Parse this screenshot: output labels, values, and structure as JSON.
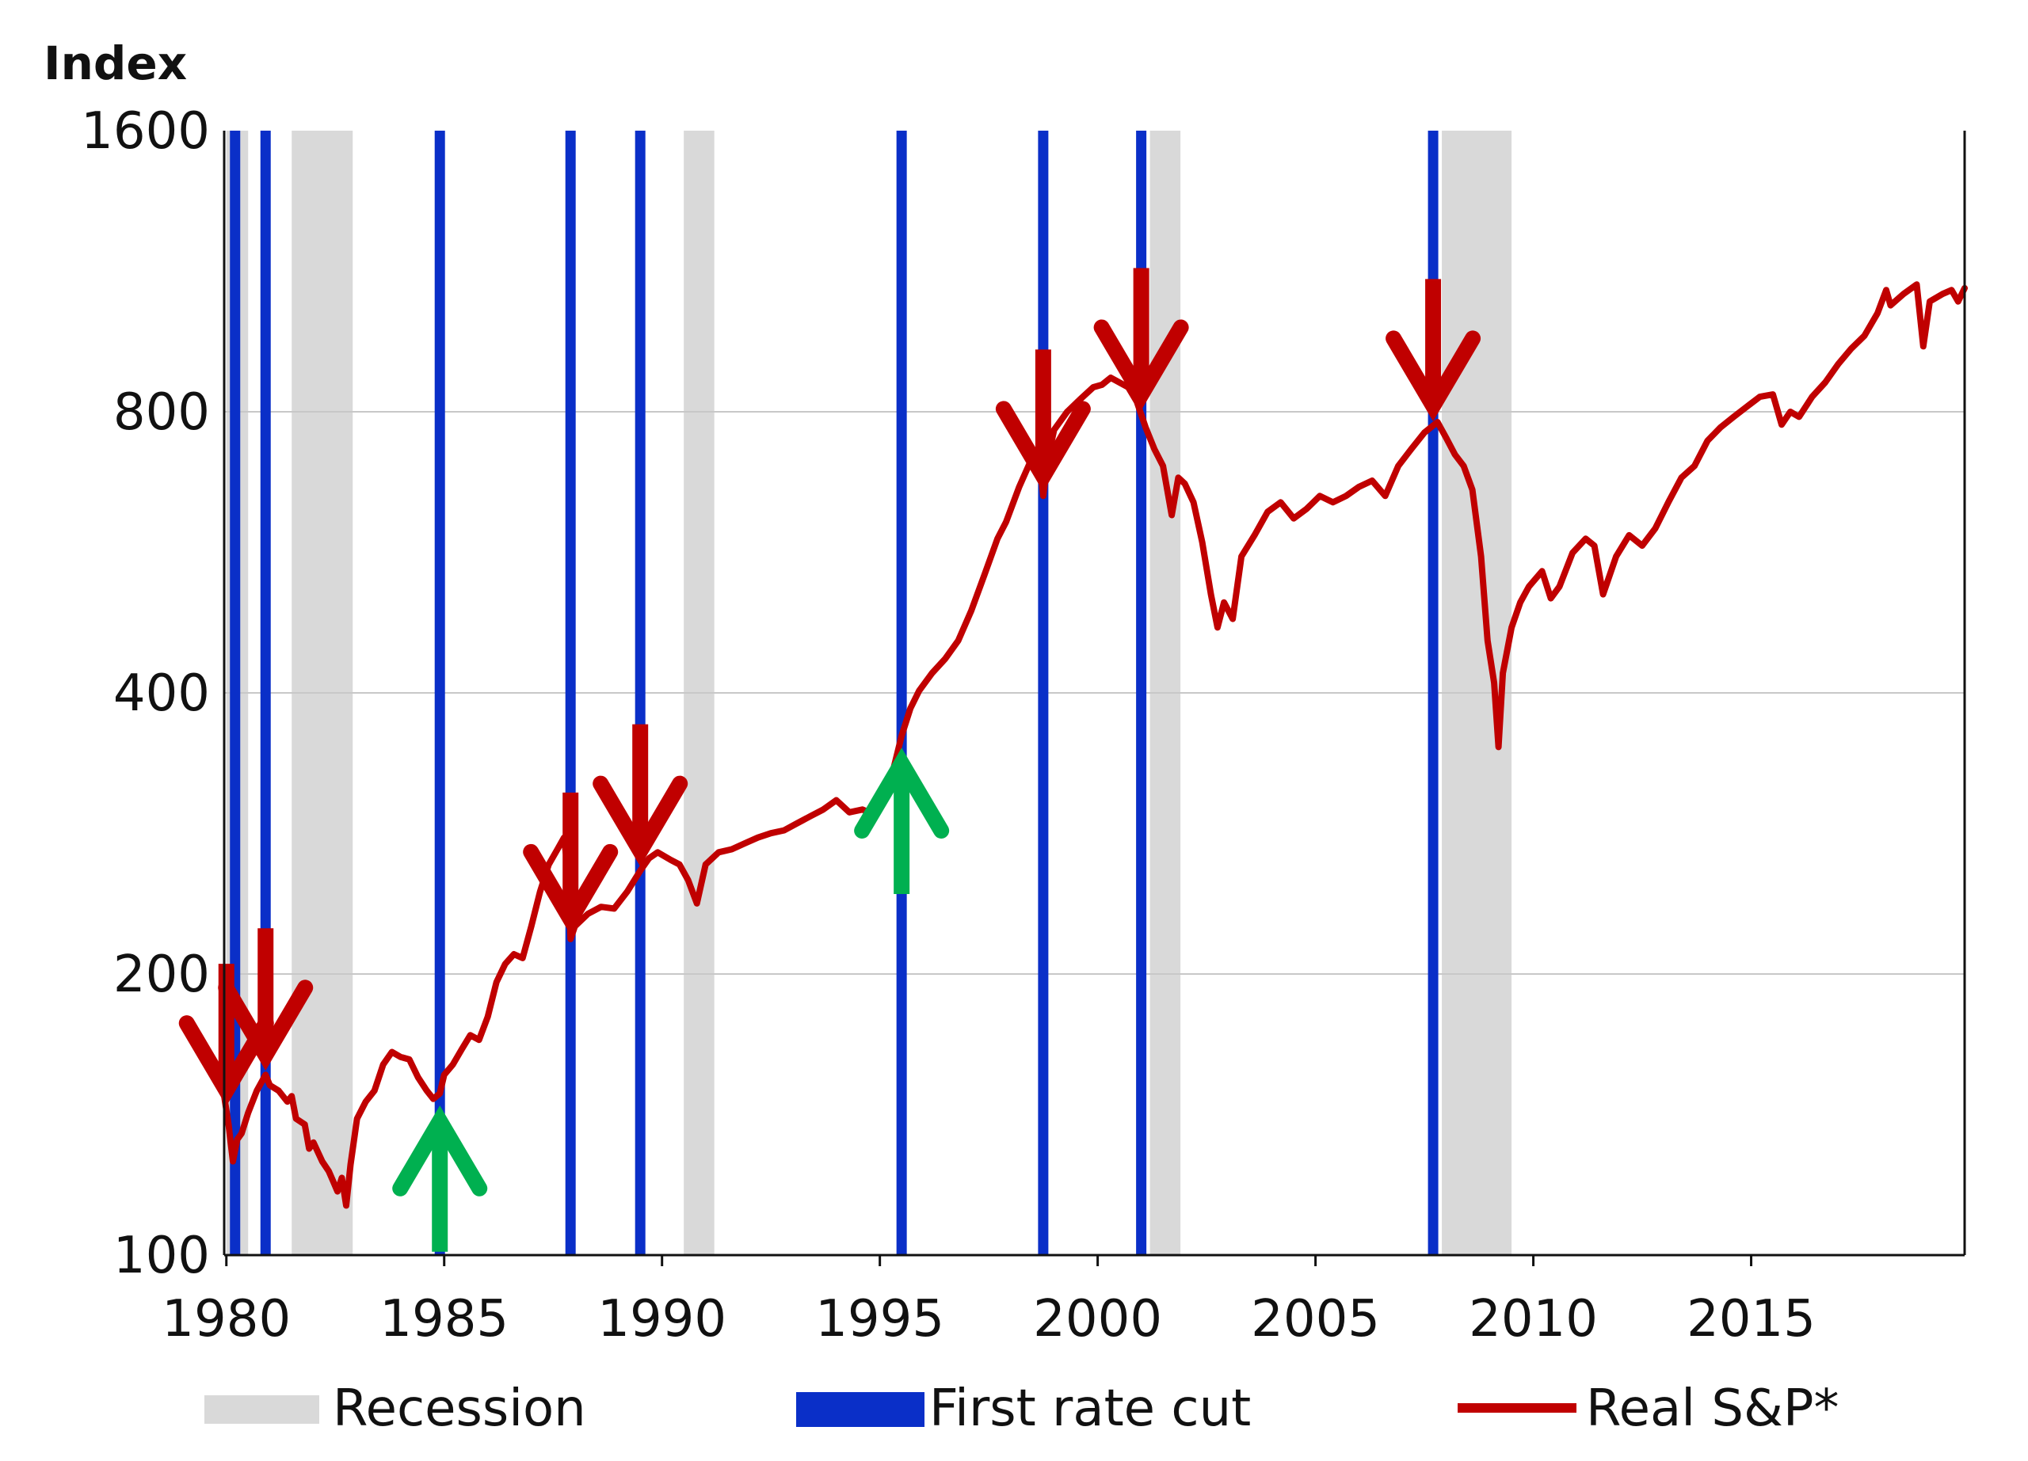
{
  "chart_data": {
    "type": "line",
    "ylabel": "Index",
    "y_scale": "log",
    "ylim": [
      100,
      1600
    ],
    "y_ticks": [
      "100",
      "200",
      "400",
      "800",
      "1600"
    ],
    "xlim": [
      1979.95,
      2019.9
    ],
    "x_ticks": [
      "1980",
      "1985",
      "1990",
      "1995",
      "2000",
      "2005",
      "2010",
      "2015"
    ],
    "grid": "horizontal",
    "legend": {
      "placement": "bottom",
      "items": [
        {
          "label": "Recession",
          "color": "#d9d9d9"
        },
        {
          "label": "First rate cut",
          "color": "#0a2fc8"
        },
        {
          "label": "Real S&P*",
          "color": "#c00000"
        }
      ]
    },
    "recessions": [
      [
        1980.0,
        1980.5
      ],
      [
        1981.5,
        1982.9
      ],
      [
        1990.5,
        1991.2
      ],
      [
        2001.2,
        2001.9
      ],
      [
        2007.9,
        2009.5
      ]
    ],
    "first_rate_cuts": [
      1980.2,
      1980.9,
      1984.9,
      1987.9,
      1989.5,
      1995.5,
      1998.75,
      2001.0,
      2007.7
    ],
    "down_arrows": [
      1980.0,
      1980.9,
      1987.9,
      1989.5,
      1998.75,
      2001.0,
      2007.7
    ],
    "up_arrows": [
      1984.9,
      1995.5
    ],
    "series": [
      {
        "name": "Real S&P*",
        "color": "#c00000",
        "points": [
          [
            1979.95,
            148
          ],
          [
            1980.05,
            138
          ],
          [
            1980.15,
            126
          ],
          [
            1980.25,
            133
          ],
          [
            1980.35,
            135
          ],
          [
            1980.5,
            142
          ],
          [
            1980.7,
            150
          ],
          [
            1980.9,
            156
          ],
          [
            1981.0,
            152
          ],
          [
            1981.2,
            150
          ],
          [
            1981.4,
            146
          ],
          [
            1981.5,
            148
          ],
          [
            1981.6,
            140
          ],
          [
            1981.8,
            138
          ],
          [
            1981.9,
            130
          ],
          [
            1982.0,
            132
          ],
          [
            1982.2,
            126
          ],
          [
            1982.35,
            123
          ],
          [
            1982.45,
            120
          ],
          [
            1982.55,
            117
          ],
          [
            1982.65,
            121
          ],
          [
            1982.75,
            113
          ],
          [
            1982.85,
            125
          ],
          [
            1983.0,
            140
          ],
          [
            1983.2,
            146
          ],
          [
            1983.4,
            150
          ],
          [
            1983.6,
            160
          ],
          [
            1983.8,
            165
          ],
          [
            1984.0,
            163
          ],
          [
            1984.2,
            162
          ],
          [
            1984.4,
            155
          ],
          [
            1984.6,
            150
          ],
          [
            1984.75,
            147
          ],
          [
            1984.9,
            149
          ],
          [
            1985.0,
            156
          ],
          [
            1985.2,
            160
          ],
          [
            1985.4,
            166
          ],
          [
            1985.6,
            172
          ],
          [
            1985.8,
            170
          ],
          [
            1986.0,
            180
          ],
          [
            1986.2,
            196
          ],
          [
            1986.4,
            205
          ],
          [
            1986.6,
            210
          ],
          [
            1986.8,
            208
          ],
          [
            1987.0,
            225
          ],
          [
            1987.2,
            245
          ],
          [
            1987.4,
            262
          ],
          [
            1987.6,
            272
          ],
          [
            1987.75,
            280
          ],
          [
            1987.85,
            255
          ],
          [
            1987.9,
            218
          ],
          [
            1988.0,
            225
          ],
          [
            1988.3,
            232
          ],
          [
            1988.6,
            236
          ],
          [
            1988.9,
            235
          ],
          [
            1989.2,
            245
          ],
          [
            1989.5,
            258
          ],
          [
            1989.7,
            266
          ],
          [
            1989.9,
            270
          ],
          [
            1990.2,
            265
          ],
          [
            1990.4,
            262
          ],
          [
            1990.6,
            252
          ],
          [
            1990.8,
            238
          ],
          [
            1991.0,
            262
          ],
          [
            1991.3,
            270
          ],
          [
            1991.6,
            272
          ],
          [
            1991.9,
            276
          ],
          [
            1992.2,
            280
          ],
          [
            1992.5,
            283
          ],
          [
            1992.8,
            285
          ],
          [
            1993.1,
            290
          ],
          [
            1993.4,
            295
          ],
          [
            1993.7,
            300
          ],
          [
            1994.0,
            307
          ],
          [
            1994.3,
            298
          ],
          [
            1994.6,
            300
          ],
          [
            1994.9,
            296
          ],
          [
            1995.1,
            310
          ],
          [
            1995.3,
            330
          ],
          [
            1995.5,
            360
          ],
          [
            1995.7,
            385
          ],
          [
            1995.9,
            402
          ],
          [
            1996.2,
            420
          ],
          [
            1996.5,
            435
          ],
          [
            1996.8,
            455
          ],
          [
            1997.1,
            490
          ],
          [
            1997.4,
            535
          ],
          [
            1997.7,
            585
          ],
          [
            1997.9,
            610
          ],
          [
            1998.2,
            665
          ],
          [
            1998.5,
            715
          ],
          [
            1998.65,
            725
          ],
          [
            1998.75,
            650
          ],
          [
            1998.85,
            710
          ],
          [
            1999.0,
            765
          ],
          [
            1999.3,
            800
          ],
          [
            1999.6,
            825
          ],
          [
            1999.9,
            850
          ],
          [
            2000.1,
            855
          ],
          [
            2000.3,
            870
          ],
          [
            2000.5,
            860
          ],
          [
            2000.7,
            850
          ],
          [
            2000.9,
            820
          ],
          [
            2001.1,
            770
          ],
          [
            2001.3,
            730
          ],
          [
            2001.5,
            700
          ],
          [
            2001.7,
            620
          ],
          [
            2001.85,
            680
          ],
          [
            2002.0,
            670
          ],
          [
            2002.2,
            640
          ],
          [
            2002.4,
            580
          ],
          [
            2002.6,
            510
          ],
          [
            2002.75,
            470
          ],
          [
            2002.9,
            500
          ],
          [
            2003.1,
            480
          ],
          [
            2003.3,
            560
          ],
          [
            2003.6,
            590
          ],
          [
            2003.9,
            625
          ],
          [
            2004.2,
            640
          ],
          [
            2004.5,
            615
          ],
          [
            2004.8,
            630
          ],
          [
            2005.1,
            650
          ],
          [
            2005.4,
            640
          ],
          [
            2005.7,
            650
          ],
          [
            2006.0,
            665
          ],
          [
            2006.3,
            675
          ],
          [
            2006.6,
            650
          ],
          [
            2006.9,
            700
          ],
          [
            2007.2,
            730
          ],
          [
            2007.5,
            760
          ],
          [
            2007.8,
            780
          ],
          [
            2008.0,
            750
          ],
          [
            2008.2,
            720
          ],
          [
            2008.4,
            700
          ],
          [
            2008.6,
            660
          ],
          [
            2008.8,
            560
          ],
          [
            2008.95,
            455
          ],
          [
            2009.1,
            410
          ],
          [
            2009.2,
            350
          ],
          [
            2009.3,
            420
          ],
          [
            2009.5,
            470
          ],
          [
            2009.7,
            500
          ],
          [
            2009.9,
            520
          ],
          [
            2010.2,
            540
          ],
          [
            2010.4,
            505
          ],
          [
            2010.6,
            520
          ],
          [
            2010.9,
            565
          ],
          [
            2011.2,
            585
          ],
          [
            2011.4,
            575
          ],
          [
            2011.6,
            510
          ],
          [
            2011.9,
            560
          ],
          [
            2012.2,
            590
          ],
          [
            2012.5,
            575
          ],
          [
            2012.8,
            600
          ],
          [
            2013.1,
            640
          ],
          [
            2013.4,
            680
          ],
          [
            2013.7,
            700
          ],
          [
            2014.0,
            745
          ],
          [
            2014.3,
            770
          ],
          [
            2014.6,
            790
          ],
          [
            2014.9,
            810
          ],
          [
            2015.2,
            830
          ],
          [
            2015.5,
            835
          ],
          [
            2015.7,
            775
          ],
          [
            2015.9,
            800
          ],
          [
            2016.1,
            790
          ],
          [
            2016.4,
            830
          ],
          [
            2016.7,
            860
          ],
          [
            2017.0,
            900
          ],
          [
            2017.3,
            935
          ],
          [
            2017.6,
            965
          ],
          [
            2017.9,
            1020
          ],
          [
            2018.1,
            1080
          ],
          [
            2018.2,
            1040
          ],
          [
            2018.5,
            1070
          ],
          [
            2018.8,
            1095
          ],
          [
            2018.95,
            940
          ],
          [
            2019.1,
            1050
          ],
          [
            2019.4,
            1070
          ],
          [
            2019.6,
            1080
          ],
          [
            2019.75,
            1050
          ],
          [
            2019.9,
            1085
          ]
        ]
      }
    ]
  },
  "colors": {
    "recession": "#d9d9d9",
    "cut_line": "#0a2fc8",
    "series": "#c00000",
    "down_arrow": "#c00000",
    "up_arrow": "#00b050",
    "grid": "#c8c8c8",
    "axis": "#111111"
  }
}
